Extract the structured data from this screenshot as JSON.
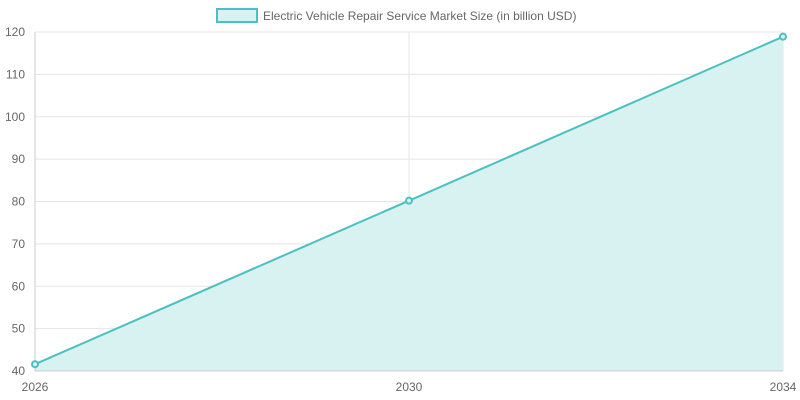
{
  "chart_data": {
    "type": "area",
    "title": "",
    "xlabel": "",
    "ylabel": "",
    "x": [
      2026,
      2030,
      2034
    ],
    "x_tick_labels": [
      "2026",
      "2030",
      "2034"
    ],
    "y_ticks": [
      40,
      50,
      60,
      70,
      80,
      90,
      100,
      110,
      120
    ],
    "ylim": [
      40,
      120
    ],
    "grid": true,
    "legend_position": "top-center",
    "series": [
      {
        "name": "Electric Vehicle Repair Service Market Size (in billion USD)",
        "values": [
          41.6,
          80.2,
          118.9
        ],
        "line_color": "#4bc0c0",
        "fill_color": "#d8f1f1"
      }
    ]
  }
}
